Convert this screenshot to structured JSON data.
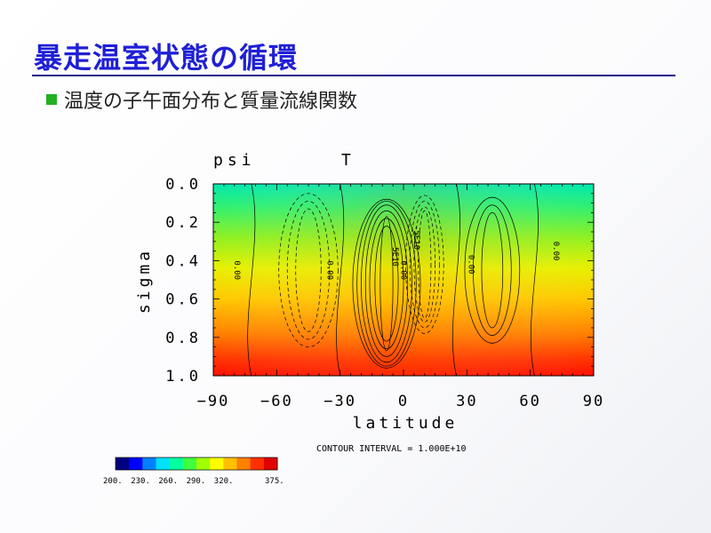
{
  "slide": {
    "title": "暴走温室状態の循環",
    "bullet": "温度の子午面分布と質量流線関数"
  },
  "colors": {
    "title": "#1f1fd6",
    "rule": "#1a1a8c",
    "bullet": "#22b022"
  },
  "chart_data": {
    "type": "heatmap",
    "labels": {
      "left": "psi",
      "right": "T"
    },
    "xlabel": "latitude",
    "ylabel": "sigma",
    "x_ticks": [
      "−90",
      "−60",
      "−30",
      "0",
      "30",
      "60",
      "90"
    ],
    "y_ticks": [
      "0.0",
      "0.2",
      "0.4",
      "0.6",
      "0.8",
      "1.0"
    ],
    "xlim": [
      -90,
      90
    ],
    "ylim": [
      0.0,
      1.0
    ],
    "y_inverted": true,
    "contour_note": "CONTOUR INTERVAL = 1.000E+10",
    "contour_labels": [
      "0.00",
      "0.00",
      "0.00",
      "0.00",
      "0.00",
      "-5E10",
      "5E10"
    ],
    "colorbar": {
      "tick_labels": [
        "200.",
        "230.",
        "260.",
        "290.",
        "320.",
        "375."
      ],
      "colors": [
        "#000080",
        "#0000ff",
        "#0080ff",
        "#00e0ff",
        "#00ffa0",
        "#40ff40",
        "#a0ff00",
        "#ffff00",
        "#ffc000",
        "#ff8000",
        "#ff3000",
        "#e00000"
      ]
    },
    "temperature_field": {
      "description_note": "warm (red) at sigma 1.0, cool (green/cyan) at top, warmer near equator"
    }
  }
}
